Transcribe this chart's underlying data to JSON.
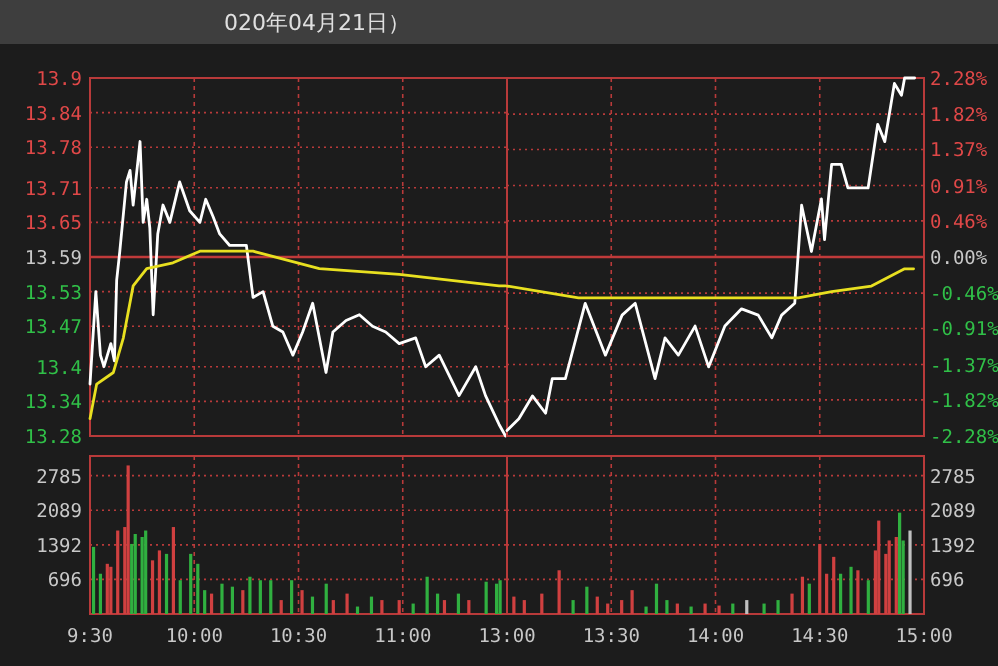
{
  "chart_data": [
    {
      "type": "line",
      "title": "020年04月21日）",
      "grid": true,
      "tick_labels": "y",
      "xlim": [
        9.5,
        11.5
      ],
      "xticks": [
        {
          "value": 9.5,
          "label": null
        },
        {
          "value": 10,
          "label": null
        },
        {
          "value": 10.5,
          "label": null
        },
        {
          "value": 11,
          "label": null
        }
      ],
      "ylim": [
        13.28,
        13.9
      ],
      "yticks": [
        13.28,
        13.34,
        13.4,
        13.47,
        13.53,
        13.59,
        13.65,
        13.71,
        13.78,
        13.84,
        13.9
      ],
      "ref_lines": [
        {
          "axis": "y",
          "value": 13.59,
          "color": "#c03a3a"
        }
      ],
      "series": [
        {
          "color": "#ffffff",
          "x": [
            9.5,
            9.528,
            9.55,
            9.567,
            9.6,
            9.617,
            9.628,
            9.643,
            9.675,
            9.692,
            9.707,
            9.74,
            9.755,
            9.772,
            9.787,
            9.803,
            9.825,
            9.85,
            9.883,
            9.93,
            9.978,
            10.027,
            10.055,
            10.09,
            10.122,
            10.17,
            10.217,
            10.25,
            10.282,
            10.33,
            10.377,
            10.425,
            10.473,
            10.52,
            10.568,
            10.632,
            10.665,
            10.728,
            10.792,
            10.855,
            10.918,
            10.983,
            11.062,
            11.11,
            11.175,
            11.27,
            11.35,
            11.397,
            11.462,
            11.493
          ],
          "values": [
            13.37,
            13.53,
            13.42,
            13.4,
            13.44,
            13.41,
            13.55,
            13.6,
            13.72,
            13.74,
            13.68,
            13.79,
            13.65,
            13.69,
            13.64,
            13.49,
            13.63,
            13.68,
            13.65,
            13.72,
            13.67,
            13.65,
            13.69,
            13.66,
            13.63,
            13.61,
            13.61,
            13.61,
            13.52,
            13.53,
            13.47,
            13.46,
            13.42,
            13.46,
            13.51,
            13.39,
            13.46,
            13.48,
            13.49,
            13.47,
            13.46,
            13.44,
            13.45,
            13.4,
            13.42,
            13.35,
            13.4,
            13.35,
            13.3,
            13.28
          ]
        },
        {
          "color": "#e8e020",
          "x": [
            9.5,
            9.532,
            9.612,
            9.66,
            9.707,
            9.772,
            9.898,
            10.027,
            10.282,
            10.6,
            10.983,
            11.462,
            11.493
          ],
          "values": [
            13.31,
            13.37,
            13.39,
            13.45,
            13.54,
            13.57,
            13.58,
            13.6,
            13.6,
            13.57,
            13.56,
            13.54,
            13.54
          ]
        }
      ]
    },
    {
      "type": "line",
      "grid": true,
      "tick_labels": "y",
      "xlim": [
        13,
        15
      ],
      "xticks": [
        {
          "value": 13,
          "label": null
        },
        {
          "value": 13.5,
          "label": null
        },
        {
          "value": 14,
          "label": null
        },
        {
          "value": 14.5,
          "label": null
        },
        {
          "value": 15,
          "label": null
        }
      ],
      "y2lim": [
        -2.28,
        2.28
      ],
      "y2ticks": [
        {
          "value": -2.28,
          "label": "-2.28%"
        },
        {
          "value": -1.82,
          "label": "-1.82%"
        },
        {
          "value": -1.37,
          "label": "-1.37%"
        },
        {
          "value": -0.91,
          "label": "-0.91%"
        },
        {
          "value": -0.46,
          "label": "-0.46%"
        },
        {
          "value": 0,
          "label": "0.00%"
        },
        {
          "value": 0.46,
          "label": "0.46%"
        },
        {
          "value": 0.91,
          "label": "0.91%"
        },
        {
          "value": 1.37,
          "label": "1.37%"
        },
        {
          "value": 1.82,
          "label": "1.82%"
        },
        {
          "value": 2.28,
          "label": "2.28%"
        }
      ],
      "ref_lines": [
        {
          "axis": "y2",
          "value": 0,
          "color": "#c03a3a"
        }
      ],
      "series": [
        {
          "axis": "y2",
          "color": "#ffffff",
          "x": [
            13,
            13.057,
            13.122,
            13.185,
            13.217,
            13.28,
            13.375,
            13.472,
            13.552,
            13.615,
            13.71,
            13.758,
            13.822,
            13.902,
            13.967,
            14.045,
            14.125,
            14.205,
            14.27,
            14.317,
            14.38,
            14.413,
            14.46,
            14.508,
            14.523,
            14.557,
            14.603,
            14.635,
            14.732,
            14.778,
            14.812,
            14.858,
            14.892,
            14.907,
            14.955
          ],
          "values": [
            -2.21,
            -2.06,
            -1.77,
            -1.99,
            -1.55,
            -1.55,
            -0.59,
            -1.25,
            -0.74,
            -0.59,
            -1.55,
            -1.03,
            -1.25,
            -0.88,
            -1.4,
            -0.88,
            -0.66,
            -0.74,
            -1.03,
            -0.74,
            -0.59,
            0.66,
            0.07,
            0.74,
            0.22,
            1.18,
            1.18,
            0.88,
            0.88,
            1.69,
            1.47,
            2.21,
            2.06,
            2.28,
            2.28
          ]
        },
        {
          "axis": "y2",
          "color": "#e8e020",
          "x": [
            13,
            13.343,
            13.983,
            14.397,
            14.557,
            14.748,
            14.907,
            14.95
          ],
          "values": [
            -0.37,
            -0.52,
            -0.52,
            -0.52,
            -0.44,
            -0.37,
            -0.15,
            -0.15
          ]
        }
      ]
    },
    {
      "type": "bar",
      "grid": true,
      "xlim": [
        9.5,
        11.5
      ],
      "xticks": [
        {
          "value": 9.5,
          "label": "9:30"
        },
        {
          "value": 10,
          "label": "10:00"
        },
        {
          "value": 10.5,
          "label": "10:30"
        },
        {
          "value": 11,
          "label": "11:00"
        }
      ],
      "ylim": [
        0,
        3180
      ],
      "yticks": [
        696,
        1392,
        2089,
        2785
      ],
      "x": [
        9.517,
        9.55,
        9.583,
        9.6,
        9.633,
        9.667,
        9.683,
        9.7,
        9.717,
        9.75,
        9.767,
        9.8,
        9.833,
        9.867,
        9.9,
        9.933,
        9.983,
        10.017,
        10.05,
        10.083,
        10.133,
        10.183,
        10.233,
        10.267,
        10.317,
        10.367,
        10.417,
        10.467,
        10.517,
        10.567,
        10.633,
        10.667,
        10.733,
        10.783,
        10.85,
        10.9,
        10.983,
        11.05,
        11.117,
        11.167,
        11.2,
        11.267,
        11.317,
        11.4,
        11.45,
        11.467
      ],
      "values": [
        1350,
        810,
        1010,
        950,
        1680,
        1750,
        2990,
        1410,
        1610,
        1550,
        1680,
        1080,
        1280,
        1210,
        1750,
        680,
        1210,
        1010,
        480,
        410,
        610,
        550,
        480,
        750,
        680,
        680,
        280,
        680,
        480,
        350,
        610,
        280,
        410,
        150,
        350,
        280,
        280,
        210,
        750,
        410,
        280,
        410,
        280,
        650,
        610,
        680
      ],
      "colors": [
        "#30b040",
        "#30b040",
        "#d04040",
        "#d04040",
        "#d04040",
        "#d04040",
        "#d04040",
        "#30b040",
        "#30b040",
        "#30b040",
        "#30b040",
        "#d04040",
        "#d04040",
        "#30b040",
        "#d04040",
        "#30b040",
        "#30b040",
        "#30b040",
        "#30b040",
        "#d04040",
        "#30b040",
        "#30b040",
        "#d04040",
        "#30b040",
        "#30b040",
        "#30b040",
        "#d04040",
        "#30b040",
        "#d04040",
        "#30b040",
        "#30b040",
        "#d04040",
        "#d04040",
        "#30b040",
        "#30b040",
        "#d04040",
        "#d04040",
        "#30b040",
        "#30b040",
        "#30b040",
        "#d04040",
        "#30b040",
        "#d04040",
        "#30b040",
        "#30b040",
        "#30b040"
      ]
    },
    {
      "type": "bar",
      "grid": true,
      "xlim": [
        13,
        15
      ],
      "xticks": [
        {
          "value": 13,
          "label": "13:00"
        },
        {
          "value": 13.5,
          "label": "13:30"
        },
        {
          "value": 14,
          "label": "14:00"
        },
        {
          "value": 14.5,
          "label": "14:30"
        },
        {
          "value": 15,
          "label": "15:00"
        }
      ],
      "y2lim": [
        0,
        3180
      ],
      "y2ticks": [
        696,
        1392,
        2089,
        2785
      ],
      "x": [
        13.033,
        13.083,
        13.167,
        13.25,
        13.317,
        13.383,
        13.433,
        13.483,
        13.55,
        13.6,
        13.667,
        13.717,
        13.767,
        13.817,
        13.883,
        13.95,
        14.017,
        14.083,
        14.15,
        14.233,
        14.3,
        14.367,
        14.417,
        14.45,
        14.5,
        14.533,
        14.567,
        14.6,
        14.65,
        14.683,
        14.733,
        14.767,
        14.783,
        14.817,
        14.833,
        14.867,
        14.883,
        14.9,
        14.933
      ],
      "series": [
        {
          "axis": "y2",
          "values": [
            350,
            280,
            410,
            880,
            280,
            550,
            350,
            210,
            280,
            480,
            150,
            610,
            280,
            210,
            150,
            210,
            170,
            210,
            280,
            210,
            280,
            410,
            750,
            610,
            1410,
            810,
            1150,
            810,
            950,
            880,
            680,
            1280,
            1880,
            1210,
            1480,
            1550,
            2040,
            1480,
            1680
          ],
          "colors": [
            "#d04040",
            "#d04040",
            "#d04040",
            "#d04040",
            "#30b040",
            "#30b040",
            "#d04040",
            "#d04040",
            "#d04040",
            "#d04040",
            "#30b040",
            "#30b040",
            "#30b040",
            "#d04040",
            "#30b040",
            "#d04040",
            "#d04040",
            "#30b040",
            "#c0c0c0",
            "#30b040",
            "#30b040",
            "#d04040",
            "#d04040",
            "#30b040",
            "#d04040",
            "#d04040",
            "#d04040",
            "#30b040",
            "#30b040",
            "#d04040",
            "#30b040",
            "#d04040",
            "#d04040",
            "#d04040",
            "#d04040",
            "#d04040",
            "#30b040",
            "#30b040",
            "#c0c0c0"
          ]
        }
      ]
    }
  ]
}
